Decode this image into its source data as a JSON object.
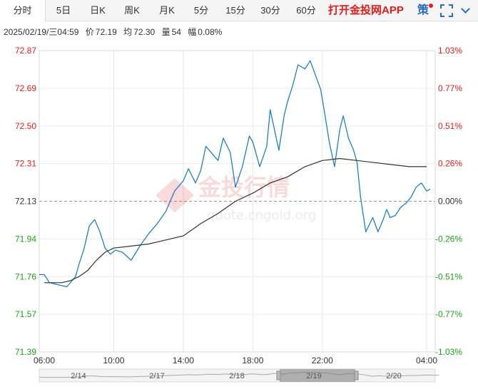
{
  "tabs": [
    {
      "label": "分时",
      "active": true
    },
    {
      "label": "5日"
    },
    {
      "label": "日K"
    },
    {
      "label": "周K"
    },
    {
      "label": "月K"
    },
    {
      "label": "5分"
    },
    {
      "label": "15分"
    },
    {
      "label": "30分"
    },
    {
      "label": "60分"
    }
  ],
  "app_link": "打开金投网APP",
  "strategy_label": "策",
  "icons": [
    "fullscreen-icon",
    "chevron-down-icon"
  ],
  "info": {
    "datetime": "2025/02/19/三04:59",
    "price_label": "价",
    "price": "72.19",
    "avg_label": "均",
    "avg": "72.30",
    "volume_label": "量",
    "volume": "54",
    "change_label": "幅",
    "change": "0.08%"
  },
  "watermark": {
    "text": "金投行情",
    "url": "quote.cngold.org"
  },
  "colors": {
    "up": "#e31c1c",
    "down": "#1aa31a",
    "price_line": "#1f7fc9",
    "avg_line": "#333333",
    "app": "#e31c1c"
  },
  "chart_data": {
    "type": "line",
    "prev_close": 72.13,
    "ylim": [
      71.39,
      72.87
    ],
    "y_ticks": [
      "72.87",
      "72.69",
      "72.50",
      "72.31",
      "72.13",
      "71.94",
      "71.76",
      "71.57",
      "71.39"
    ],
    "pct_ticks": [
      "1.03%",
      "0.77%",
      "0.51%",
      "0.26%",
      "0.00%",
      "-0.26%",
      "-0.51%",
      "-0.77%",
      "-1.03%"
    ],
    "x_ticks": [
      "06:00",
      "10:00",
      "14:00",
      "18:00",
      "22:00",
      "04:00"
    ],
    "x_tick_hours": [
      0,
      4,
      8,
      12,
      16,
      22
    ],
    "x_range_hours": [
      0,
      22
    ],
    "series": [
      {
        "name": "价",
        "x": [
          -0.9,
          0.0,
          0.3,
          0.8,
          1.3,
          1.8,
          2.0,
          2.3,
          2.6,
          2.9,
          3.2,
          3.5,
          3.8,
          4.1,
          4.5,
          5.0,
          5.5,
          6.0,
          6.5,
          7.0,
          7.5,
          8.0,
          8.3,
          8.7,
          9.0,
          9.3,
          9.7,
          10.0,
          10.3,
          10.7,
          11.0,
          11.4,
          11.8,
          12.0,
          12.4,
          12.8,
          13.0,
          13.2,
          13.5,
          13.8,
          14.0,
          14.3,
          14.6,
          15.0,
          15.3,
          15.6,
          15.9,
          16.1,
          16.4,
          16.7,
          17.0,
          17.2,
          17.5,
          17.8,
          18.0,
          18.2,
          18.5,
          18.9,
          19.2,
          19.5,
          19.7,
          19.9,
          20.2,
          20.5,
          20.8,
          21.1,
          21.4,
          21.7,
          22.0,
          22.2
        ],
        "y": [
          71.77,
          71.77,
          71.73,
          71.72,
          71.71,
          71.76,
          71.82,
          71.9,
          72.01,
          72.04,
          71.98,
          71.9,
          71.87,
          71.89,
          71.88,
          71.84,
          71.91,
          71.97,
          72.02,
          72.08,
          72.18,
          72.23,
          72.29,
          72.22,
          72.28,
          72.4,
          72.36,
          72.33,
          72.44,
          72.37,
          72.2,
          72.3,
          72.45,
          72.42,
          72.3,
          72.4,
          72.58,
          72.5,
          72.38,
          72.55,
          72.62,
          72.7,
          72.8,
          72.78,
          72.82,
          72.75,
          72.68,
          72.58,
          72.42,
          72.3,
          72.48,
          72.55,
          72.44,
          72.38,
          72.32,
          72.15,
          71.98,
          72.05,
          71.98,
          72.04,
          72.09,
          72.05,
          72.06,
          72.1,
          72.12,
          72.15,
          72.2,
          72.22,
          72.18,
          72.19
        ]
      },
      {
        "name": "均",
        "x": [
          0.0,
          0.5,
          1.0,
          1.5,
          2.0,
          2.5,
          3.0,
          3.5,
          4.0,
          5.0,
          6.0,
          7.0,
          8.0,
          9.0,
          10.0,
          11.0,
          12.0,
          13.0,
          14.0,
          15.0,
          16.0,
          17.0,
          18.0,
          19.0,
          20.0,
          21.0,
          22.0
        ],
        "y": [
          71.73,
          71.73,
          71.73,
          71.74,
          71.76,
          71.79,
          71.84,
          71.88,
          71.9,
          71.91,
          71.92,
          71.94,
          71.96,
          72.02,
          72.07,
          72.13,
          72.17,
          72.22,
          72.25,
          72.3,
          72.33,
          72.34,
          72.33,
          72.32,
          72.31,
          72.3,
          72.3
        ]
      }
    ],
    "navigator_dates": [
      "2/14",
      "2/17",
      "2/18",
      "2/19",
      "2/20"
    ],
    "navigator_selected": "2/19"
  }
}
